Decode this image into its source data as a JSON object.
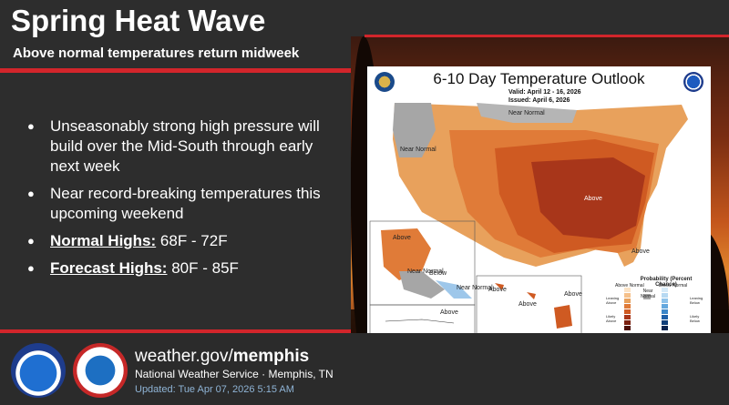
{
  "header": {
    "title": "Spring Heat Wave",
    "subtitle": "Above normal temperatures return midweek"
  },
  "bullets": [
    {
      "text": "Unseasonably strong high pressure will build over the Mid-South through early next week"
    },
    {
      "text": "Near record-breaking temperatures this upcoming weekend"
    },
    {
      "label": "Normal Highs:",
      "value": " 68F - 72F"
    },
    {
      "label": "Forecast Highs:",
      "value": " 80F - 85F"
    }
  ],
  "footer": {
    "site_prefix": "weather.gov/",
    "site_bold": "memphis",
    "org": "National Weather Service · Memphis, TN",
    "updated": "Updated: Tue Apr 07, 2026 5:15 AM"
  },
  "map": {
    "title": "6-10 Day Temperature Outlook",
    "valid": "Valid:   April 12 - 16, 2026",
    "issued": "Issued:   April 6, 2026",
    "labels": {
      "near_normal_top": "Near Normal",
      "near_normal_west": "Near Normal",
      "above_main": "Above",
      "above_fl": "Above",
      "above_ak": "Above",
      "near_normal_ak": "Near Normal",
      "below_ak": "Below",
      "near_normal_ak2": "Near Normal",
      "above_ak2": "Above",
      "above_hi": "Above",
      "above_hi2": "Above",
      "above_hi3": "Above"
    },
    "legend": {
      "title": "Probability (Percent Chance)",
      "above": "Above Normal",
      "below": "Below Normal",
      "near": "Near Normal",
      "leaning_above": "Leaning Above",
      "likely_above": "Likely Above",
      "leaning_below": "Leaning Below",
      "likely_below": "Likely Below"
    }
  },
  "colors": {
    "accent_red": "#d2252b",
    "updated_blue": "#8fb4d6"
  }
}
